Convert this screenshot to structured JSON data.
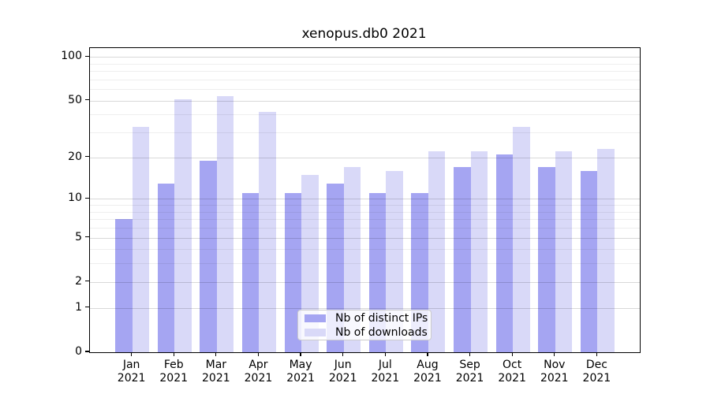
{
  "title": "xenopus.db0 2021",
  "chart_data": {
    "type": "bar",
    "title": "xenopus.db0 2021",
    "categories": [
      "Jan",
      "Feb",
      "Mar",
      "Apr",
      "May",
      "Jun",
      "Jul",
      "Aug",
      "Sep",
      "Oct",
      "Nov",
      "Dec"
    ],
    "x_tick_year": "2021",
    "series": [
      {
        "name": "Nb of distinct IPs",
        "color": "#a5a5f2",
        "values": [
          7,
          13,
          19,
          11,
          11,
          13,
          11,
          11,
          17,
          21,
          17,
          16
        ]
      },
      {
        "name": "Nb of downloads",
        "color": "#d9d9f8",
        "values": [
          33,
          51,
          54,
          42,
          15,
          17,
          16,
          22,
          22,
          33,
          22,
          23
        ]
      }
    ],
    "y_scale": "log1p",
    "ylim": [
      0,
      115
    ],
    "y_major_ticks": [
      0,
      1,
      2,
      5,
      10,
      20,
      50,
      100
    ],
    "y_minor_ticks": [
      3,
      4,
      6,
      7,
      8,
      9,
      30,
      40,
      60,
      70,
      80,
      90
    ],
    "grid": true,
    "legend_position": "lower center",
    "axis_color": "#000000",
    "background_color": "#ffffff"
  }
}
